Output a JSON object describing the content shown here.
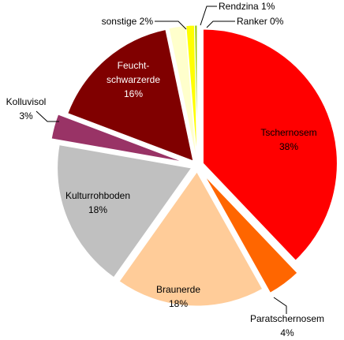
{
  "chart_data": {
    "type": "pie",
    "exploded": true,
    "slices": [
      {
        "label": "Tschernosem",
        "value": 38,
        "value_label": "38%",
        "color": "#ff0000"
      },
      {
        "label": "Paratschernosem",
        "value": 4,
        "value_label": "4%",
        "color": "#ff6600"
      },
      {
        "label": "Braunerde",
        "value": 18,
        "value_label": "18%",
        "color": "#ffcc99"
      },
      {
        "label": "Kulturrohboden",
        "value": 18,
        "value_label": "18%",
        "color": "#c0c0c0"
      },
      {
        "label": "Kolluvisol",
        "value": 3,
        "value_label": "3%",
        "color": "#993366"
      },
      {
        "label": "Feucht-schwarzerde",
        "value": 16,
        "value_label": "16%",
        "color": "#800000"
      },
      {
        "label": "sonstige",
        "value": 2,
        "value_label": "2%",
        "color": "#ffffcc"
      },
      {
        "label": "Rendzina",
        "value": 1,
        "value_label": "1%",
        "color": "#ffff00"
      },
      {
        "label": "Ranker",
        "value": 0.3,
        "value_label": "0%",
        "color": "#99cc00"
      }
    ],
    "labels": {
      "tschernosem": {
        "name": "Tschernosem",
        "pct": "38%"
      },
      "paratschernosem": {
        "name": "Paratschernosem",
        "pct": "4%"
      },
      "braunerde": {
        "name": "Braunerde",
        "pct": "18%"
      },
      "kulturrohboden": {
        "name": "Kulturrohboden",
        "pct": "18%"
      },
      "kolluvisol": {
        "name": "Kolluvisol",
        "pct": "3%"
      },
      "feucht": {
        "line1": "Feucht-",
        "line2": "schwarzerde",
        "pct": "16%"
      },
      "sonstige": {
        "text": "sonstige 2%"
      },
      "rendzina": {
        "text": "Rendzina 1%"
      },
      "ranker": {
        "text": "Ranker 0%"
      }
    }
  }
}
